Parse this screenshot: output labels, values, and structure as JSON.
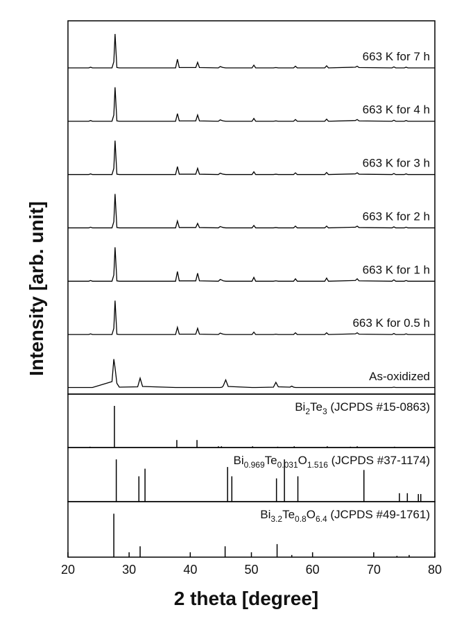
{
  "chart_data": [
    {
      "type": "line",
      "ylabel": "Intensity [arb. unit]",
      "xlim": [
        20,
        80
      ],
      "ylim": [
        0,
        130
      ],
      "x": [
        20,
        23.4,
        23.7,
        24.0,
        27.2,
        27.5,
        27.7,
        28.0,
        28.4,
        31.4,
        31.8,
        32.2,
        37.6,
        37.9,
        38.2,
        40.9,
        41.2,
        41.5,
        44.6,
        44.9,
        45.2,
        45.4,
        45.8,
        46.2,
        50.1,
        50.4,
        50.7,
        53.6,
        54.0,
        54.4,
        56.3,
        56.6,
        56.9,
        57.2,
        57.5,
        62.0,
        62.3,
        62.6,
        67.0,
        67.3,
        67.6,
        73.0,
        73.3,
        73.6,
        75.0,
        75.3,
        75.6,
        80
      ],
      "series": [
        {
          "name": "663 K for 7 h",
          "color": "#000000",
          "values": [
            2,
            2,
            4,
            2,
            2,
            20,
            100,
            3,
            2,
            2,
            2,
            2,
            2,
            27,
            3,
            3,
            18,
            3,
            2,
            6,
            4,
            3,
            2,
            2,
            2,
            10,
            2,
            2,
            3,
            2,
            2,
            2,
            2,
            7,
            2,
            2,
            8,
            2,
            4,
            7,
            3,
            2,
            5,
            2,
            2,
            4,
            2,
            2
          ]
        },
        {
          "name": "663 K for 4 h",
          "color": "#000000",
          "values": [
            2,
            2,
            4,
            2,
            2,
            20,
            100,
            3,
            2,
            2,
            2,
            2,
            2,
            24,
            3,
            3,
            20,
            3,
            2,
            6,
            4,
            3,
            2,
            2,
            2,
            10,
            2,
            2,
            3,
            2,
            2,
            2,
            2,
            7,
            2,
            2,
            8,
            2,
            4,
            7,
            3,
            2,
            5,
            2,
            2,
            4,
            2,
            2
          ]
        },
        {
          "name": "663 K for 3 h",
          "color": "#000000",
          "values": [
            2,
            2,
            4,
            2,
            2,
            20,
            100,
            3,
            2,
            2,
            2,
            2,
            2,
            25,
            3,
            3,
            20,
            3,
            2,
            6,
            4,
            3,
            2,
            2,
            2,
            10,
            2,
            2,
            3,
            2,
            2,
            2,
            2,
            7,
            2,
            2,
            8,
            2,
            4,
            7,
            3,
            2,
            5,
            2,
            2,
            4,
            2,
            2
          ]
        },
        {
          "name": "663 K for 2 h",
          "color": "#000000",
          "values": [
            2,
            2,
            4,
            2,
            2,
            20,
            100,
            3,
            2,
            2,
            2,
            2,
            2,
            22,
            3,
            3,
            15,
            3,
            2,
            6,
            4,
            3,
            2,
            2,
            2,
            9,
            2,
            2,
            3,
            2,
            2,
            2,
            2,
            7,
            2,
            2,
            7,
            2,
            4,
            7,
            3,
            2,
            5,
            2,
            2,
            4,
            2,
            2
          ]
        },
        {
          "name": "663 K for 1 h",
          "color": "#000000",
          "values": [
            2,
            2,
            4,
            2,
            2,
            20,
            100,
            3,
            2,
            2,
            2,
            2,
            2,
            30,
            3,
            3,
            25,
            3,
            2,
            7,
            5,
            3,
            2,
            2,
            2,
            13,
            2,
            2,
            3,
            2,
            2,
            2,
            2,
            9,
            2,
            2,
            11,
            2,
            4,
            9,
            3,
            2,
            6,
            2,
            2,
            4,
            2,
            2
          ]
        },
        {
          "name": "663 K for 0.5 h",
          "color": "#000000",
          "values": [
            2,
            2,
            4,
            2,
            2,
            20,
            100,
            3,
            2,
            2,
            2,
            2,
            2,
            23,
            3,
            3,
            20,
            3,
            2,
            6,
            4,
            3,
            2,
            2,
            2,
            9,
            2,
            2,
            3,
            2,
            2,
            2,
            2,
            7,
            2,
            2,
            7,
            2,
            4,
            7,
            3,
            2,
            5,
            2,
            2,
            4,
            2,
            2
          ]
        },
        {
          "name": "As-oxidized",
          "color": "#000000",
          "values": [
            3,
            3,
            3,
            3,
            20,
            85,
            60,
            15,
            4,
            5,
            30,
            6,
            3,
            3,
            3,
            3,
            3,
            3,
            3,
            3,
            4,
            8,
            25,
            6,
            3,
            3,
            3,
            4,
            18,
            5,
            4,
            7,
            4,
            3,
            3,
            3,
            3,
            3,
            3,
            3,
            3,
            3,
            4,
            3,
            3,
            3,
            3,
            3
          ]
        }
      ]
    },
    {
      "type": "stem",
      "label": [
        "Bi",
        "2",
        "Te",
        "3",
        " (JCPDS #15-0863)"
      ],
      "color": "#000000",
      "xlim": [
        20,
        80
      ],
      "ylim": [
        0,
        115
      ],
      "x": [
        23.6,
        27.6,
        37.8,
        41.1,
        44.6,
        45.1,
        50.2,
        54.3,
        57.0,
        62.4,
        66.2,
        67.3,
        73.4
      ],
      "values": [
        2,
        100,
        18,
        18,
        3,
        3,
        3,
        2,
        3,
        3,
        2,
        3,
        2
      ]
    },
    {
      "type": "stem",
      "label": [
        "Bi",
        "0.969",
        "Te",
        "0.031",
        "O",
        "1.516",
        " (JCPDS #37-1174)"
      ],
      "color": "#000000",
      "xlim": [
        20,
        80
      ],
      "ylim": [
        0,
        115
      ],
      "x": [
        27.9,
        31.6,
        32.6,
        46.1,
        46.8,
        54.1,
        55.4,
        57.6,
        68.4,
        74.2,
        75.5,
        77.3,
        77.7
      ],
      "values": [
        100,
        60,
        78,
        82,
        60,
        55,
        100,
        60,
        75,
        20,
        20,
        18,
        18
      ]
    },
    {
      "type": "stem",
      "label": [
        "Bi",
        "3.2",
        "Te",
        "0.8",
        "O",
        "6.4",
        " (JCPDS #49-1761)"
      ],
      "color": "#000000",
      "xlim": [
        20,
        80
      ],
      "ylim": [
        0,
        115
      ],
      "x": [
        27.5,
        31.8,
        45.7,
        54.2,
        56.6,
        73.8,
        75.8
      ],
      "values": [
        100,
        25,
        25,
        30,
        5,
        3,
        5
      ],
      "xlabel": "2 theta [degree]",
      "xticks": [
        20,
        30,
        40,
        50,
        60,
        70,
        80
      ]
    }
  ]
}
